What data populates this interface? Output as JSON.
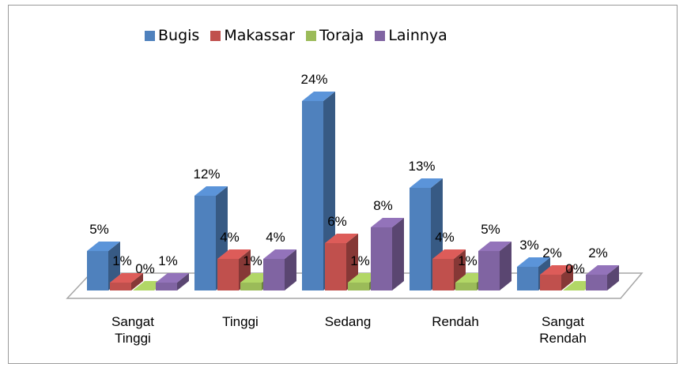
{
  "chart_data": {
    "type": "bar3d",
    "categories": [
      "Sangat Tinggi",
      "Tinggi",
      "Sedang",
      "Rendah",
      "Sangat Rendah"
    ],
    "series": [
      {
        "name": "Bugis",
        "color": "#4f81bd",
        "values": [
          5,
          12,
          24,
          13,
          3
        ],
        "value_labels": [
          "5%",
          "12%",
          "24%",
          "13%",
          "3%"
        ]
      },
      {
        "name": "Makassar",
        "color": "#c0504d",
        "values": [
          1,
          4,
          6,
          4,
          2
        ],
        "value_labels": [
          "1%",
          "4%",
          "6%",
          "4%",
          "2%"
        ]
      },
      {
        "name": "Toraja",
        "color": "#9bbb59",
        "values": [
          0,
          1,
          1,
          1,
          0
        ],
        "value_labels": [
          "0%",
          "1%",
          "1%",
          "1%",
          "0%"
        ]
      },
      {
        "name": "Lainnya",
        "color": "#8064a2",
        "values": [
          1,
          4,
          8,
          5,
          2
        ],
        "value_labels": [
          "1%",
          "4%",
          "8%",
          "5%",
          "2%"
        ]
      }
    ],
    "legend": "top"
  }
}
